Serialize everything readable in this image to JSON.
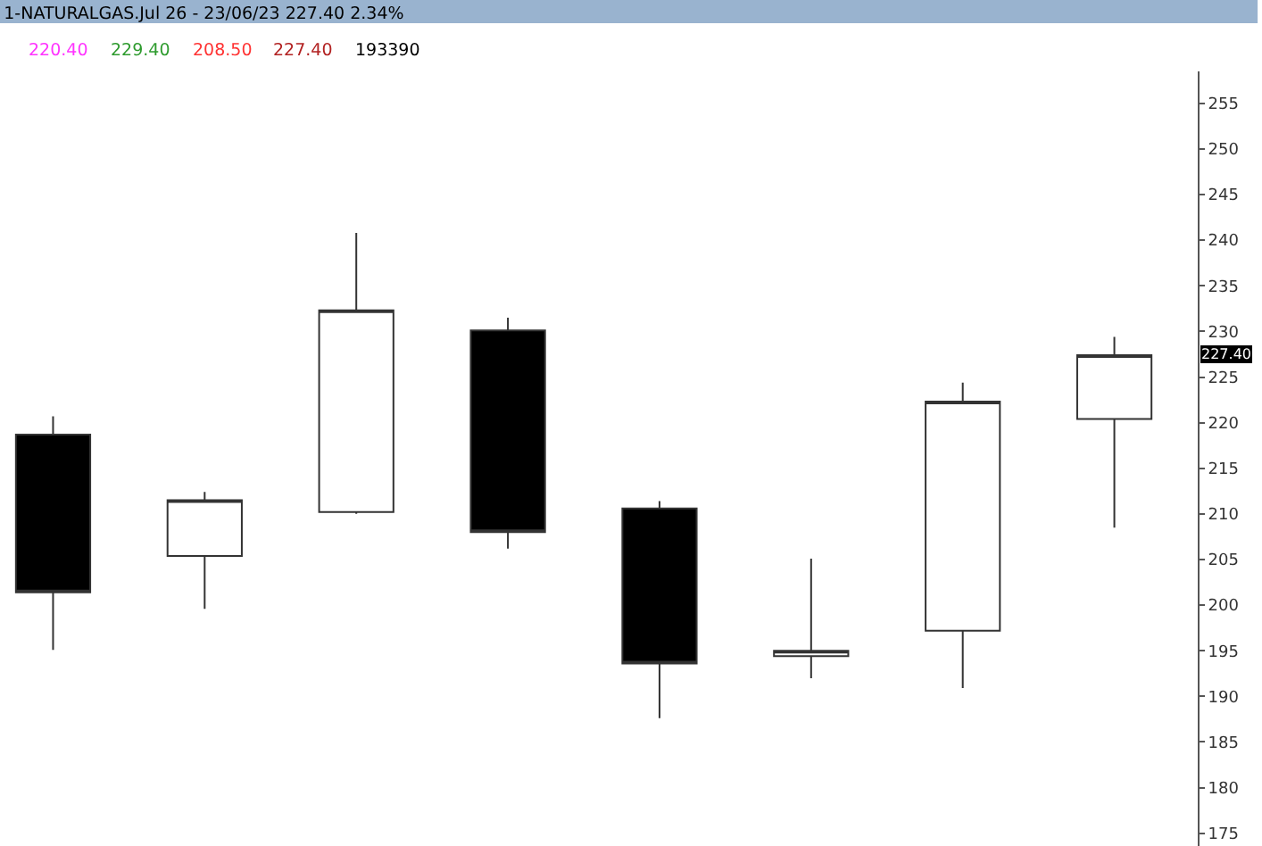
{
  "chart_data": {
    "type": "candlestick",
    "title": "1-NATURALGAS.Jul 26 - 23/06/23 227.40 2.34%",
    "annotations": [
      "220.40",
      "229.40",
      "208.50",
      "227.40",
      "193390",
      {
        "text": "227.40",
        "y": 227.4
      }
    ],
    "categories": [
      null,
      null,
      null,
      null,
      null,
      null,
      null,
      null
    ],
    "ohlc": [
      [
        218.7,
        220.7,
        195.1,
        201.4
      ],
      [
        205.4,
        212.4,
        199.6,
        211.5
      ],
      [
        210.2,
        240.8,
        210.0,
        232.3
      ],
      [
        230.1,
        231.5,
        206.2,
        208.0
      ],
      [
        210.6,
        211.4,
        187.6,
        193.6
      ],
      [
        194.4,
        205.1,
        192.0,
        195.0
      ],
      [
        197.2,
        224.4,
        190.9,
        222.3
      ],
      [
        220.4,
        229.4,
        208.5,
        227.4
      ]
    ],
    "ylim": [
      173.6,
      258.5
    ],
    "yticks": [
      175,
      180,
      185,
      190,
      195,
      200,
      205,
      210,
      215,
      220,
      225,
      230,
      235,
      240,
      245,
      250,
      255
    ],
    "grid": false,
    "legend": false
  }
}
